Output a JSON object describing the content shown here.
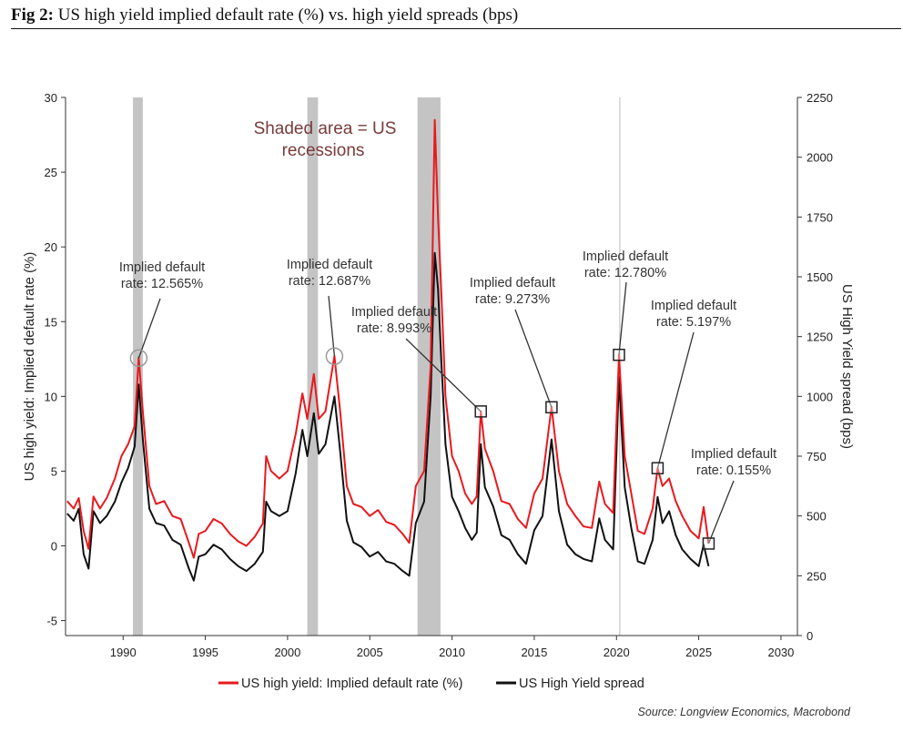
{
  "figure": {
    "label": "Fig 2:",
    "title": "US high yield implied default rate (%) vs. high yield spreads (bps)"
  },
  "chart_data": {
    "type": "line",
    "x_range": [
      1986.5,
      2031
    ],
    "x_ticks": [
      1990,
      1995,
      2000,
      2005,
      2010,
      2015,
      2020,
      2025,
      2030
    ],
    "left_axis": {
      "label": "US high yield: Implied default rate (%)",
      "range": [
        -6,
        30
      ],
      "ticks": [
        -5,
        0,
        5,
        10,
        15,
        20,
        25,
        30
      ]
    },
    "right_axis": {
      "label": "US High Yield spread (bps)",
      "range": [
        0,
        2250
      ],
      "ticks": [
        0,
        250,
        500,
        750,
        1000,
        1250,
        1500,
        1750,
        2000,
        2250
      ]
    },
    "recessions": [
      [
        1990.6,
        1991.2
      ],
      [
        2001.2,
        2001.85
      ],
      [
        2007.9,
        2009.3
      ]
    ],
    "covid_line": 2020.2,
    "series": [
      {
        "name": "US high yield: Implied default rate (%)",
        "color": "#e8191e",
        "axis": "left",
        "points": [
          [
            1986.6,
            3.0
          ],
          [
            1987.0,
            2.5
          ],
          [
            1987.3,
            3.2
          ],
          [
            1987.6,
            1.0
          ],
          [
            1987.9,
            -0.2
          ],
          [
            1988.2,
            3.3
          ],
          [
            1988.6,
            2.5
          ],
          [
            1989.0,
            3.2
          ],
          [
            1989.5,
            4.5
          ],
          [
            1989.9,
            6.0
          ],
          [
            1990.3,
            6.8
          ],
          [
            1990.7,
            8.0
          ],
          [
            1990.95,
            12.6
          ],
          [
            1991.2,
            9.0
          ],
          [
            1991.6,
            4.0
          ],
          [
            1992.0,
            2.8
          ],
          [
            1992.5,
            3.0
          ],
          [
            1993.0,
            2.0
          ],
          [
            1993.5,
            1.8
          ],
          [
            1994.0,
            0.2
          ],
          [
            1994.3,
            -0.8
          ],
          [
            1994.6,
            0.8
          ],
          [
            1995.0,
            1.0
          ],
          [
            1995.5,
            1.8
          ],
          [
            1996.0,
            1.5
          ],
          [
            1996.5,
            0.8
          ],
          [
            1997.0,
            0.3
          ],
          [
            1997.5,
            0.0
          ],
          [
            1998.0,
            0.6
          ],
          [
            1998.5,
            1.5
          ],
          [
            1998.7,
            6.0
          ],
          [
            1999.0,
            5.0
          ],
          [
            1999.5,
            4.5
          ],
          [
            2000.0,
            5.0
          ],
          [
            2000.5,
            7.5
          ],
          [
            2000.9,
            10.2
          ],
          [
            2001.2,
            8.5
          ],
          [
            2001.6,
            11.5
          ],
          [
            2001.9,
            8.5
          ],
          [
            2002.3,
            9.0
          ],
          [
            2002.85,
            12.7
          ],
          [
            2003.2,
            9.0
          ],
          [
            2003.6,
            4.0
          ],
          [
            2004.0,
            2.8
          ],
          [
            2004.5,
            2.6
          ],
          [
            2005.0,
            2.0
          ],
          [
            2005.5,
            2.4
          ],
          [
            2006.0,
            1.6
          ],
          [
            2006.5,
            1.4
          ],
          [
            2007.0,
            0.8
          ],
          [
            2007.4,
            0.2
          ],
          [
            2007.8,
            4.0
          ],
          [
            2008.3,
            5.0
          ],
          [
            2008.7,
            12.0
          ],
          [
            2008.95,
            28.5
          ],
          [
            2009.15,
            22.0
          ],
          [
            2009.35,
            17.0
          ],
          [
            2009.6,
            10.0
          ],
          [
            2010.0,
            6.0
          ],
          [
            2010.4,
            5.0
          ],
          [
            2010.8,
            3.5
          ],
          [
            2011.2,
            2.8
          ],
          [
            2011.5,
            3.3
          ],
          [
            2011.75,
            9.0
          ],
          [
            2012.0,
            6.5
          ],
          [
            2012.5,
            5.0
          ],
          [
            2013.0,
            3.0
          ],
          [
            2013.5,
            2.8
          ],
          [
            2014.0,
            1.8
          ],
          [
            2014.5,
            1.2
          ],
          [
            2015.0,
            3.5
          ],
          [
            2015.5,
            4.5
          ],
          [
            2016.05,
            9.3
          ],
          [
            2016.5,
            5.0
          ],
          [
            2017.0,
            2.8
          ],
          [
            2017.5,
            2.0
          ],
          [
            2018.0,
            1.3
          ],
          [
            2018.5,
            1.2
          ],
          [
            2018.95,
            4.3
          ],
          [
            2019.3,
            2.8
          ],
          [
            2019.8,
            2.2
          ],
          [
            2020.15,
            12.8
          ],
          [
            2020.5,
            6.0
          ],
          [
            2020.9,
            3.5
          ],
          [
            2021.3,
            1.0
          ],
          [
            2021.7,
            0.8
          ],
          [
            2022.2,
            2.5
          ],
          [
            2022.5,
            5.2
          ],
          [
            2022.8,
            4.0
          ],
          [
            2023.2,
            4.5
          ],
          [
            2023.6,
            3.0
          ],
          [
            2024.0,
            2.0
          ],
          [
            2024.5,
            1.0
          ],
          [
            2025.0,
            0.5
          ],
          [
            2025.3,
            2.6
          ],
          [
            2025.6,
            0.155
          ]
        ]
      },
      {
        "name": "US High Yield spread",
        "color": "#111111",
        "axis": "right",
        "points": [
          [
            1986.6,
            510
          ],
          [
            1987.0,
            480
          ],
          [
            1987.3,
            530
          ],
          [
            1987.6,
            340
          ],
          [
            1987.9,
            280
          ],
          [
            1988.2,
            520
          ],
          [
            1988.6,
            470
          ],
          [
            1989.0,
            500
          ],
          [
            1989.5,
            560
          ],
          [
            1989.9,
            640
          ],
          [
            1990.3,
            700
          ],
          [
            1990.7,
            790
          ],
          [
            1990.95,
            1050
          ],
          [
            1991.2,
            820
          ],
          [
            1991.6,
            530
          ],
          [
            1992.0,
            470
          ],
          [
            1992.5,
            460
          ],
          [
            1993.0,
            400
          ],
          [
            1993.5,
            380
          ],
          [
            1994.0,
            280
          ],
          [
            1994.3,
            230
          ],
          [
            1994.6,
            330
          ],
          [
            1995.0,
            340
          ],
          [
            1995.5,
            380
          ],
          [
            1996.0,
            360
          ],
          [
            1996.5,
            320
          ],
          [
            1997.0,
            290
          ],
          [
            1997.5,
            270
          ],
          [
            1998.0,
            300
          ],
          [
            1998.5,
            350
          ],
          [
            1998.7,
            560
          ],
          [
            1999.0,
            520
          ],
          [
            1999.5,
            500
          ],
          [
            2000.0,
            520
          ],
          [
            2000.5,
            680
          ],
          [
            2000.9,
            860
          ],
          [
            2001.2,
            750
          ],
          [
            2001.6,
            930
          ],
          [
            2001.9,
            760
          ],
          [
            2002.3,
            800
          ],
          [
            2002.85,
            1000
          ],
          [
            2003.2,
            770
          ],
          [
            2003.6,
            480
          ],
          [
            2004.0,
            390
          ],
          [
            2004.5,
            370
          ],
          [
            2005.0,
            330
          ],
          [
            2005.5,
            350
          ],
          [
            2006.0,
            310
          ],
          [
            2006.5,
            300
          ],
          [
            2007.0,
            270
          ],
          [
            2007.4,
            250
          ],
          [
            2007.8,
            470
          ],
          [
            2008.3,
            560
          ],
          [
            2008.7,
            1000
          ],
          [
            2008.95,
            1600
          ],
          [
            2009.15,
            1450
          ],
          [
            2009.35,
            1150
          ],
          [
            2009.6,
            800
          ],
          [
            2010.0,
            580
          ],
          [
            2010.4,
            520
          ],
          [
            2010.8,
            450
          ],
          [
            2011.2,
            400
          ],
          [
            2011.5,
            430
          ],
          [
            2011.75,
            800
          ],
          [
            2012.0,
            620
          ],
          [
            2012.5,
            540
          ],
          [
            2013.0,
            420
          ],
          [
            2013.5,
            400
          ],
          [
            2014.0,
            340
          ],
          [
            2014.5,
            300
          ],
          [
            2015.0,
            440
          ],
          [
            2015.5,
            500
          ],
          [
            2016.05,
            820
          ],
          [
            2016.5,
            520
          ],
          [
            2017.0,
            380
          ],
          [
            2017.5,
            340
          ],
          [
            2018.0,
            320
          ],
          [
            2018.5,
            310
          ],
          [
            2018.95,
            490
          ],
          [
            2019.3,
            400
          ],
          [
            2019.8,
            360
          ],
          [
            2020.15,
            1080
          ],
          [
            2020.5,
            620
          ],
          [
            2020.9,
            450
          ],
          [
            2021.3,
            310
          ],
          [
            2021.7,
            300
          ],
          [
            2022.2,
            400
          ],
          [
            2022.5,
            580
          ],
          [
            2022.8,
            470
          ],
          [
            2023.2,
            520
          ],
          [
            2023.6,
            420
          ],
          [
            2024.0,
            360
          ],
          [
            2024.5,
            320
          ],
          [
            2025.0,
            290
          ],
          [
            2025.3,
            380
          ],
          [
            2025.6,
            290
          ]
        ]
      }
    ],
    "annotations": [
      {
        "line1": "Implied default",
        "line2": "rate: 12.565%",
        "x": 1990.95,
        "y": 12.565,
        "marker": "circle"
      },
      {
        "line1": "Implied default",
        "line2": "rate: 12.687%",
        "x": 2002.85,
        "y": 12.687,
        "marker": "circle"
      },
      {
        "line1": "Implied default",
        "line2": "rate: 8.993%",
        "x": 2011.75,
        "y": 8.993,
        "marker": "square"
      },
      {
        "line1": "Implied default",
        "line2": "rate: 9.273%",
        "x": 2016.05,
        "y": 9.273,
        "marker": "square"
      },
      {
        "line1": "Implied default",
        "line2": "rate: 12.780%",
        "x": 2020.15,
        "y": 12.78,
        "marker": "square"
      },
      {
        "line1": "Implied default",
        "line2": "rate: 5.197%",
        "x": 2022.5,
        "y": 5.197,
        "marker": "square"
      },
      {
        "line1": "Implied default",
        "line2": "rate: 0.155%",
        "x": 2025.6,
        "y": 0.155,
        "marker": "square"
      }
    ],
    "shade_note": [
      "Shaded area = US",
      "recessions"
    ],
    "legend": [
      "US high yield: Implied default rate (%)",
      "US High Yield spread"
    ],
    "source": "Source: Longview Economics, Macrobond"
  }
}
